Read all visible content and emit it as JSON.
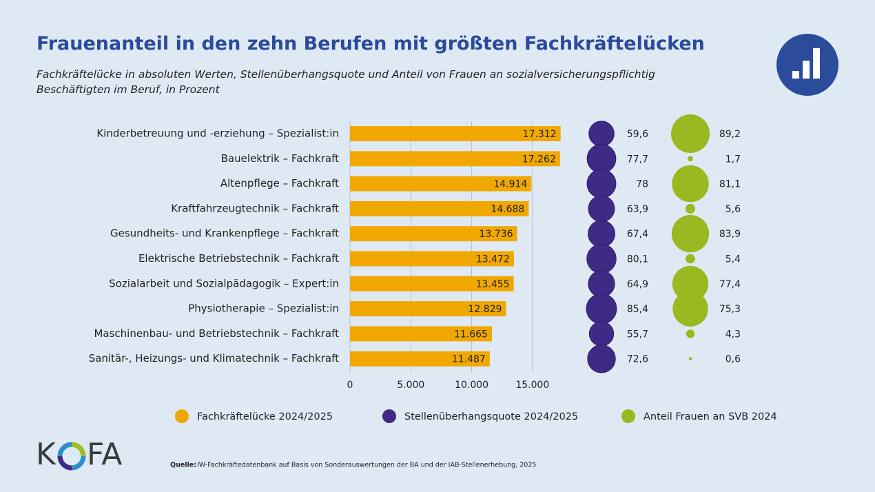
{
  "chart_data": {
    "type": "bar",
    "title": "Frauenanteil in den zehn Berufen mit größten Fachkräftelücken",
    "subtitle": "Fachkräftelücke in absoluten Werten, Stellenüberhangsquote und Anteil von Frauen an sozialversicherungspflichtig Beschäftigten im Beruf, in Prozent",
    "categories": [
      "Kinderbetreuung und -erziehung – Spezialist:in",
      "Bauelektrik – Fachkraft",
      "Altenpflege – Fachkraft",
      "Kraftfahrzeugtechnik – Fachkraft",
      "Gesundheits- und Krankenpflege – Fachkraft",
      "Elektrische Betriebstechnik – Fachkraft",
      "Sozialarbeit und Sozialpädagogik – Expert:in",
      "Physiotherapie – Spezialist:in",
      "Maschinenbau- und Betriebstechnik – Fachkraft",
      "Sanitär-, Heizungs- und Klimatechnik – Fachkraft"
    ],
    "series": [
      {
        "name": "Fachkräftelücke 2024/2025",
        "type": "bar",
        "color": "#f0a800",
        "values": [
          17312,
          17262,
          14914,
          14688,
          13736,
          13472,
          13455,
          12829,
          11665,
          11487
        ],
        "value_labels": [
          "17.312",
          "17.262",
          "14.914",
          "14.688",
          "13.736",
          "13.472",
          "13.455",
          "12.829",
          "11.665",
          "11.487"
        ]
      },
      {
        "name": "Stellenüberhangsquote 2024/2025",
        "type": "bubble",
        "color": "#3f2a85",
        "values": [
          59.6,
          77.7,
          78,
          63.9,
          67.4,
          80.1,
          64.9,
          85.4,
          55.7,
          72.6
        ],
        "value_labels": [
          "59,6",
          "77,7",
          "78",
          "63,9",
          "67,4",
          "80,1",
          "64,9",
          "85,4",
          "55,7",
          "72,6"
        ]
      },
      {
        "name": "Anteil Frauen an SVB 2024",
        "type": "bubble",
        "color": "#9ab81f",
        "values": [
          89.2,
          1.7,
          81.1,
          5.6,
          83.9,
          5.4,
          77.4,
          75.3,
          4.3,
          0.6
        ],
        "value_labels": [
          "89,2",
          "1,7",
          "81,1",
          "5,6",
          "83,9",
          "5,4",
          "77,4",
          "75,3",
          "4,3",
          "0,6"
        ]
      }
    ],
    "xlim": [
      0,
      17500
    ],
    "xticks": [
      0,
      {
        "value": 5000,
        "label": "5.000"
      },
      {
        "value": 10000,
        "label": "10.000"
      },
      {
        "value": 15000,
        "label": "15.000"
      }
    ],
    "grid": true
  },
  "logo_left": "K",
  "logo_right": "FA",
  "source_label": "Quelle:",
  "source": "IW-Fachkräftedatenbank auf Basis von Sonderauswertungen der BA und der IAB-Stellenerhebung, 2025"
}
